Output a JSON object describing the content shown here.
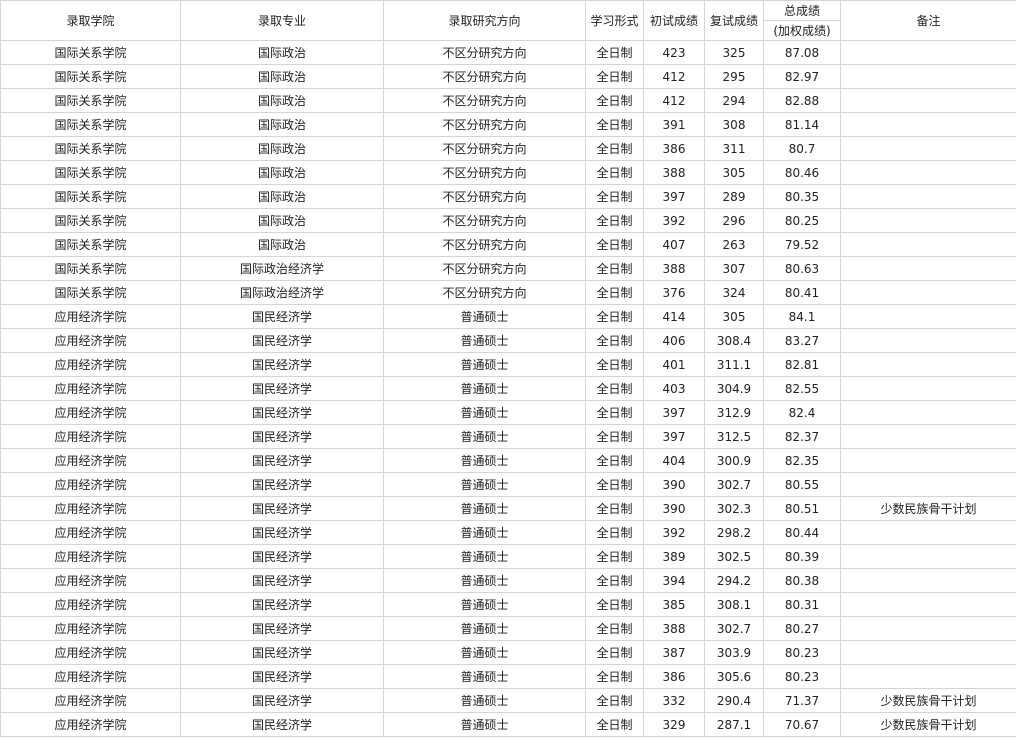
{
  "table": {
    "header": [
      "录取学院",
      "录取专业",
      "录取研究方向",
      "学习形式",
      "初试成绩",
      "复试成绩",
      "总成绩",
      "(加权成绩)",
      "备注"
    ],
    "rows": [
      [
        "国际关系学院",
        "国际政治",
        "不区分研究方向",
        "全日制",
        423,
        325,
        87.08
      ],
      [
        "国际关系学院",
        "国际政治",
        "不区分研究方向",
        "全日制",
        412,
        295,
        82.97
      ],
      [
        "国际关系学院",
        "国际政治",
        "不区分研究方向",
        "全日制",
        412,
        294,
        82.88
      ],
      [
        "国际关系学院",
        "国际政治",
        "不区分研究方向",
        "全日制",
        391,
        308,
        81.14
      ],
      [
        "国际关系学院",
        "国际政治",
        "不区分研究方向",
        "全日制",
        386,
        311,
        80.7
      ],
      [
        "国际关系学院",
        "国际政治",
        "不区分研究方向",
        "全日制",
        388,
        305,
        80.46
      ],
      [
        "国际关系学院",
        "国际政治",
        "不区分研究方向",
        "全日制",
        397,
        289,
        80.35
      ],
      [
        "国际关系学院",
        "国际政治",
        "不区分研究方向",
        "全日制",
        392,
        296,
        80.25
      ],
      [
        "国际关系学院",
        "国际政治",
        "不区分研究方向",
        "全日制",
        407,
        263,
        79.52
      ],
      [
        "国际关系学院",
        "国际政治经济学",
        "不区分研究方向",
        "全日制",
        388,
        307,
        80.63
      ],
      [
        "国际关系学院",
        "国际政治经济学",
        "不区分研究方向",
        "全日制",
        376,
        324,
        80.41
      ],
      [
        "应用经济学院",
        "国民经济学",
        "普通硕士",
        "全日制",
        414,
        305,
        84.1
      ],
      [
        "应用经济学院",
        "国民经济学",
        "普通硕士",
        "全日制",
        406,
        308.4,
        83.27
      ],
      [
        "应用经济学院",
        "国民经济学",
        "普通硕士",
        "全日制",
        401,
        311.1,
        82.81
      ],
      [
        "应用经济学院",
        "国民经济学",
        "普通硕士",
        "全日制",
        403,
        304.9,
        82.55
      ],
      [
        "应用经济学院",
        "国民经济学",
        "普通硕士",
        "全日制",
        397,
        312.9,
        82.4
      ],
      [
        "应用经济学院",
        "国民经济学",
        "普通硕士",
        "全日制",
        397,
        312.5,
        82.37
      ],
      [
        "应用经济学院",
        "国民经济学",
        "普通硕士",
        "全日制",
        404,
        300.9,
        82.35
      ],
      [
        "应用经济学院",
        "国民经济学",
        "普通硕士",
        "全日制",
        390,
        302.7,
        80.55
      ],
      [
        "应用经济学院",
        "国民经济学",
        "普通硕士",
        "全日制",
        390,
        302.3,
        80.51,
        "少数民族骨干计划"
      ],
      [
        "应用经济学院",
        "国民经济学",
        "普通硕士",
        "全日制",
        392,
        298.2,
        80.44
      ],
      [
        "应用经济学院",
        "国民经济学",
        "普通硕士",
        "全日制",
        389,
        302.5,
        80.39
      ],
      [
        "应用经济学院",
        "国民经济学",
        "普通硕士",
        "全日制",
        394,
        294.2,
        80.38
      ],
      [
        "应用经济学院",
        "国民经济学",
        "普通硕士",
        "全日制",
        385,
        308.1,
        80.31
      ],
      [
        "应用经济学院",
        "国民经济学",
        "普通硕士",
        "全日制",
        388,
        302.7,
        80.27
      ],
      [
        "应用经济学院",
        "国民经济学",
        "普通硕士",
        "全日制",
        387,
        303.9,
        80.23
      ],
      [
        "应用经济学院",
        "国民经济学",
        "普通硕士",
        "全日制",
        386,
        305.6,
        80.23
      ],
      [
        "应用经济学院",
        "国民经济学",
        "普通硕士",
        "全日制",
        332,
        290.4,
        71.37,
        "少数民族骨干计划"
      ],
      [
        "应用经济学院",
        "国民经济学",
        "普通硕士",
        "全日制",
        329,
        287.1,
        70.67,
        "少数民族骨干计划"
      ]
    ]
  }
}
